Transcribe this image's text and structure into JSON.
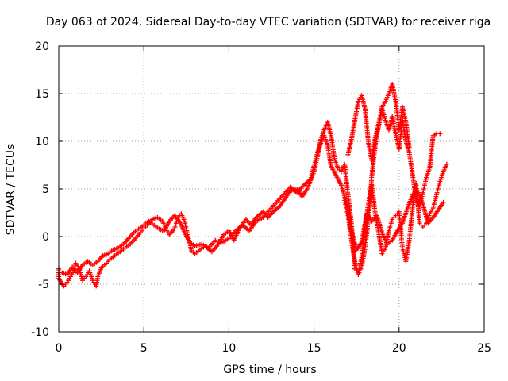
{
  "chart_data": {
    "type": "scatter",
    "title": "Day 063 of 2024, Sidereal Day-to-day VTEC variation (SDTVAR) for receiver riga",
    "xlabel": "GPS time / hours",
    "ylabel": "SDTVAR / TECUs",
    "xlim": [
      0,
      25
    ],
    "ylim": [
      -10,
      20
    ],
    "xticks": [
      0,
      5,
      10,
      15,
      20,
      25
    ],
    "yticks": [
      -10,
      -5,
      0,
      5,
      10,
      15,
      20
    ],
    "grid": true,
    "marker": "+",
    "color": "#ff0000",
    "series": [
      {
        "values": [
          [
            0.0,
            -3.4
          ],
          [
            0.0,
            -4.4
          ],
          [
            0.3,
            -5.2
          ],
          [
            0.5,
            -4.8
          ],
          [
            0.7,
            -4.2
          ],
          [
            0.9,
            -3.6
          ],
          [
            1.0,
            -2.8
          ],
          [
            1.2,
            -3.4
          ],
          [
            1.4,
            -4.6
          ],
          [
            1.6,
            -4.2
          ],
          [
            1.8,
            -3.6
          ],
          [
            2.0,
            -4.6
          ],
          [
            2.2,
            -5.2
          ],
          [
            2.3,
            -4.2
          ],
          [
            2.5,
            -3.3
          ],
          [
            2.8,
            -2.8
          ],
          [
            3.0,
            -2.4
          ],
          [
            3.3,
            -2.0
          ],
          [
            3.6,
            -1.6
          ],
          [
            3.9,
            -1.2
          ],
          [
            4.2,
            -0.8
          ],
          [
            4.5,
            -0.2
          ],
          [
            4.8,
            0.4
          ],
          [
            5.0,
            0.8
          ],
          [
            5.2,
            1.2
          ],
          [
            5.5,
            1.8
          ],
          [
            5.8,
            2.0
          ],
          [
            6.1,
            1.6
          ],
          [
            6.3,
            0.8
          ],
          [
            6.5,
            0.2
          ],
          [
            6.8,
            0.8
          ],
          [
            7.0,
            2.0
          ],
          [
            7.2,
            2.4
          ],
          [
            7.4,
            1.6
          ],
          [
            7.6,
            0.0
          ],
          [
            7.8,
            -1.5
          ],
          [
            8.0,
            -1.8
          ],
          [
            8.3,
            -1.4
          ],
          [
            8.6,
            -1.0
          ],
          [
            9.0,
            -1.6
          ],
          [
            9.3,
            -1.0
          ],
          [
            9.7,
            0.2
          ],
          [
            10.0,
            0.6
          ],
          [
            10.3,
            -0.4
          ],
          [
            10.6,
            0.8
          ],
          [
            11.0,
            1.8
          ],
          [
            11.3,
            1.2
          ],
          [
            11.6,
            2.0
          ],
          [
            12.0,
            2.6
          ],
          [
            12.3,
            2.0
          ],
          [
            12.6,
            2.6
          ],
          [
            13.0,
            3.2
          ],
          [
            13.3,
            4.0
          ],
          [
            13.6,
            4.8
          ],
          [
            14.0,
            5.0
          ],
          [
            14.3,
            4.2
          ],
          [
            14.6,
            5.0
          ],
          [
            15.0,
            6.8
          ],
          [
            15.2,
            8.4
          ],
          [
            15.4,
            10.2
          ],
          [
            15.6,
            11.2
          ],
          [
            15.8,
            12.0
          ],
          [
            16.0,
            10.6
          ],
          [
            16.2,
            8.2
          ],
          [
            16.4,
            7.2
          ],
          [
            16.6,
            6.8
          ],
          [
            16.8,
            7.6
          ],
          [
            17.0,
            4.4
          ],
          [
            17.2,
            1.4
          ],
          [
            17.4,
            -3.4
          ],
          [
            17.6,
            -3.8
          ],
          [
            17.8,
            -2.2
          ],
          [
            18.0,
            0.8
          ],
          [
            18.2,
            3.6
          ],
          [
            18.4,
            5.4
          ],
          [
            18.6,
            2.4
          ],
          [
            18.8,
            0.4
          ],
          [
            19.0,
            -1.8
          ],
          [
            19.2,
            -1.2
          ],
          [
            19.4,
            0.6
          ],
          [
            19.6,
            1.8
          ],
          [
            19.8,
            2.2
          ],
          [
            20.0,
            2.6
          ],
          [
            20.2,
            -1.2
          ],
          [
            20.4,
            -2.6
          ],
          [
            20.6,
            -0.4
          ],
          [
            20.8,
            3.2
          ],
          [
            21.0,
            5.6
          ],
          [
            21.2,
            1.4
          ],
          [
            21.4,
            1.0
          ],
          [
            21.6,
            1.4
          ],
          [
            21.8,
            2.4
          ],
          [
            22.0,
            3.0
          ],
          [
            22.2,
            4.4
          ],
          [
            22.4,
            5.8
          ],
          [
            22.6,
            6.8
          ],
          [
            22.8,
            7.6
          ]
        ]
      },
      {
        "values": [
          [
            0.2,
            -3.8
          ],
          [
            0.5,
            -4.0
          ],
          [
            0.8,
            -3.2
          ],
          [
            1.1,
            -3.8
          ],
          [
            1.4,
            -3.0
          ],
          [
            1.7,
            -2.6
          ],
          [
            2.0,
            -3.0
          ],
          [
            2.3,
            -2.6
          ],
          [
            2.6,
            -2.0
          ],
          [
            2.9,
            -1.8
          ],
          [
            3.2,
            -1.4
          ],
          [
            3.5,
            -1.2
          ],
          [
            3.8,
            -0.8
          ],
          [
            4.1,
            -0.2
          ],
          [
            4.4,
            0.4
          ],
          [
            4.7,
            0.8
          ],
          [
            5.0,
            1.2
          ],
          [
            5.3,
            1.6
          ],
          [
            5.6,
            1.2
          ],
          [
            5.9,
            0.8
          ],
          [
            6.2,
            0.6
          ],
          [
            6.5,
            1.6
          ],
          [
            6.8,
            2.2
          ],
          [
            7.1,
            1.6
          ],
          [
            7.4,
            0.4
          ],
          [
            7.7,
            -0.6
          ],
          [
            8.0,
            -1.0
          ],
          [
            8.4,
            -0.8
          ],
          [
            8.8,
            -1.2
          ],
          [
            9.2,
            -0.4
          ],
          [
            9.6,
            -0.6
          ],
          [
            10.0,
            -0.2
          ],
          [
            10.4,
            0.6
          ],
          [
            10.8,
            1.2
          ],
          [
            11.2,
            0.6
          ],
          [
            11.6,
            1.6
          ],
          [
            12.0,
            2.0
          ],
          [
            12.4,
            2.8
          ],
          [
            12.8,
            3.6
          ],
          [
            13.2,
            4.4
          ],
          [
            13.6,
            5.2
          ],
          [
            14.0,
            4.6
          ],
          [
            14.4,
            5.4
          ],
          [
            14.8,
            6.0
          ],
          [
            15.0,
            7.4
          ],
          [
            15.2,
            8.8
          ],
          [
            15.4,
            9.8
          ],
          [
            15.6,
            10.6
          ],
          [
            15.8,
            9.6
          ],
          [
            16.0,
            7.4
          ],
          [
            16.3,
            6.4
          ],
          [
            16.6,
            5.4
          ],
          [
            16.9,
            3.6
          ],
          [
            17.2,
            0.6
          ],
          [
            17.5,
            -1.4
          ],
          [
            17.8,
            -0.6
          ],
          [
            18.1,
            2.4
          ],
          [
            18.4,
            1.6
          ],
          [
            18.7,
            2.2
          ],
          [
            19.0,
            0.4
          ],
          [
            19.3,
            -0.8
          ],
          [
            19.6,
            -0.4
          ],
          [
            19.9,
            0.6
          ],
          [
            20.2,
            1.4
          ],
          [
            20.5,
            3.0
          ],
          [
            20.8,
            4.4
          ],
          [
            21.1,
            4.8
          ],
          [
            21.4,
            3.4
          ],
          [
            21.7,
            1.4
          ],
          [
            22.0,
            2.0
          ],
          [
            22.3,
            2.8
          ],
          [
            22.6,
            3.6
          ]
        ]
      },
      {
        "values": [
          [
            16.8,
            3.8
          ],
          [
            17.0,
            2.2
          ],
          [
            17.2,
            -0.4
          ],
          [
            17.4,
            -2.6
          ],
          [
            17.6,
            -4.0
          ],
          [
            17.8,
            -3.2
          ],
          [
            18.0,
            -1.2
          ],
          [
            18.2,
            1.8
          ],
          [
            18.4,
            6.4
          ],
          [
            18.6,
            9.6
          ],
          [
            18.8,
            11.6
          ],
          [
            19.0,
            13.4
          ],
          [
            19.2,
            12.2
          ],
          [
            19.4,
            11.2
          ],
          [
            19.6,
            12.6
          ],
          [
            19.8,
            10.8
          ],
          [
            20.0,
            9.2
          ],
          [
            20.2,
            12.2
          ],
          [
            20.4,
            10.0
          ],
          [
            20.6,
            8.8
          ],
          [
            20.8,
            6.4
          ],
          [
            21.0,
            4.0
          ],
          [
            21.2,
            3.2
          ],
          [
            21.4,
            4.6
          ],
          [
            21.6,
            6.2
          ],
          [
            21.8,
            7.2
          ],
          [
            22.0,
            10.6
          ],
          [
            22.2,
            10.8
          ],
          [
            22.4,
            10.8
          ]
        ]
      },
      {
        "values": [
          [
            17.0,
            8.6
          ],
          [
            17.2,
            10.2
          ],
          [
            17.4,
            12.2
          ],
          [
            17.6,
            14.2
          ],
          [
            17.8,
            14.8
          ],
          [
            18.0,
            13.4
          ],
          [
            18.2,
            9.8
          ],
          [
            18.4,
            8.0
          ],
          [
            18.6,
            10.4
          ],
          [
            18.8,
            11.8
          ],
          [
            19.0,
            13.6
          ],
          [
            19.2,
            14.2
          ],
          [
            19.4,
            15.0
          ],
          [
            19.6,
            16.0
          ],
          [
            19.8,
            14.2
          ],
          [
            20.0,
            11.2
          ],
          [
            20.2,
            13.6
          ],
          [
            20.4,
            12.0
          ],
          [
            20.6,
            9.4
          ]
        ]
      }
    ]
  }
}
